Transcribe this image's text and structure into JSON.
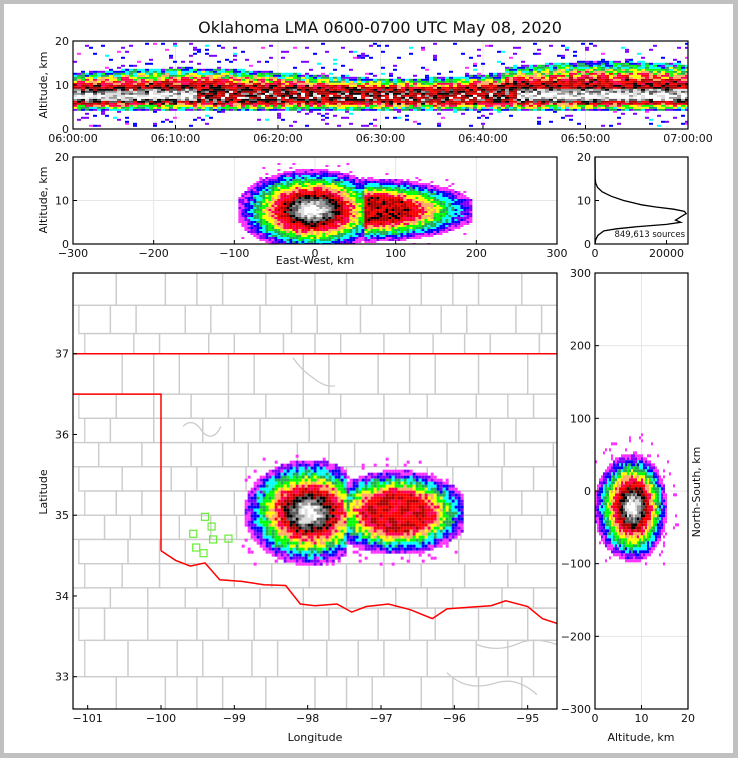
{
  "title": "Oklahoma LMA 0600-0700 UTC May 08, 2020",
  "colors": {
    "frame": "#000000",
    "grid": "#e6e6e6",
    "county": "#cccccc",
    "state": "#ff0000",
    "station": "#66ee33",
    "density_scale": [
      "#ff33ff",
      "#7f00ff",
      "#0000ff",
      "#00ffff",
      "#22aa55",
      "#00ff00",
      "#ffff00",
      "#ffaa66",
      "#ff0055",
      "#ff0000",
      "#aa0000",
      "#000000",
      "#555555",
      "#999999",
      "#dddddd",
      "#ffffff"
    ]
  },
  "chart_data": [
    {
      "name": "time-height",
      "type": "heatmap",
      "xlabel": "",
      "ylabel": "Altitude, km",
      "xticks": [
        "06:00:00",
        "06:10:00",
        "06:20:00",
        "06:30:00",
        "06:40:00",
        "06:50:00",
        "07:00:00"
      ],
      "yticks": [
        "0",
        "10",
        "20"
      ],
      "xlim_minutes": [
        0,
        60
      ],
      "ylim": [
        0,
        20
      ],
      "core_altitude_km": [
        4,
        12
      ],
      "densest_altitude_km": [
        5,
        9
      ]
    },
    {
      "name": "east-west-altitude",
      "type": "heatmap",
      "xlabel": "East-West, km",
      "ylabel": "Altitude, km",
      "xticks": [
        "−300",
        "−200",
        "−100",
        "0",
        "100",
        "200",
        "300"
      ],
      "yticks": [
        "0",
        "10",
        "20"
      ],
      "xlim": [
        -300,
        300
      ],
      "ylim": [
        0,
        20
      ],
      "extent_x_km": [
        -90,
        190
      ]
    },
    {
      "name": "altitude-histogram",
      "type": "line",
      "xticks": [
        "0",
        "20000"
      ],
      "yticks": [
        "0",
        "10",
        "20"
      ],
      "xlim": [
        0,
        26000
      ],
      "ylim": [
        0,
        20
      ],
      "annotation": "849,613 sources",
      "altitude_km": [
        0,
        1,
        2,
        3,
        3.5,
        4,
        4.5,
        5,
        5.5,
        6,
        6.5,
        7,
        7.5,
        8,
        8.5,
        9,
        10,
        11,
        12,
        13,
        14,
        15,
        20
      ],
      "counts": [
        0,
        200,
        800,
        2500,
        6000,
        12000,
        20000,
        24000,
        22500,
        23500,
        24500,
        25500,
        25000,
        22000,
        17000,
        13000,
        8000,
        4500,
        2000,
        700,
        200,
        50,
        0
      ]
    },
    {
      "name": "plan-view-map",
      "type": "heatmap",
      "xlabel": "Longitude",
      "ylabel": "Latitude",
      "xticks": [
        "−101",
        "−100",
        "−99",
        "−98",
        "−97",
        "−96",
        "−95"
      ],
      "yticks": [
        "33",
        "34",
        "35",
        "36",
        "37"
      ],
      "xlim": [
        -101.2,
        -94.6
      ],
      "ylim": [
        32.6,
        38.0
      ],
      "stations": [
        [
          -99.4,
          34.98
        ],
        [
          -99.31,
          34.86
        ],
        [
          -99.56,
          34.77
        ],
        [
          -99.29,
          34.7
        ],
        [
          -99.08,
          34.71
        ],
        [
          -99.52,
          34.6
        ],
        [
          -99.42,
          34.53
        ]
      ]
    },
    {
      "name": "north-south-altitude",
      "type": "heatmap",
      "xlabel": "Altitude, km",
      "ylabel": "North-South, km",
      "xticks": [
        "0",
        "10",
        "20"
      ],
      "yticks": [
        "−300",
        "−200",
        "−100",
        "0",
        "100",
        "200",
        "300"
      ],
      "xlim": [
        0,
        20
      ],
      "ylim": [
        -300,
        300
      ],
      "extent_y_km": [
        -95,
        100
      ]
    }
  ]
}
